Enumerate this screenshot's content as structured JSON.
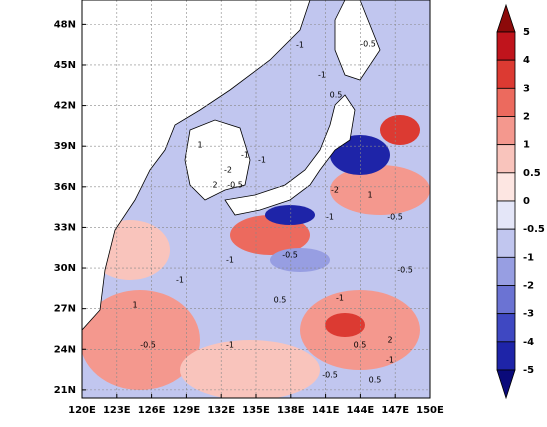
{
  "map": {
    "lonlim": [
      120,
      150
    ],
    "latlim": [
      20.4,
      49.8
    ],
    "lon_ticks": [
      {
        "value": 120,
        "label": "120E"
      },
      {
        "value": 123,
        "label": "123E"
      },
      {
        "value": 126,
        "label": "126E"
      },
      {
        "value": 129,
        "label": "129E"
      },
      {
        "value": 132,
        "label": "132E"
      },
      {
        "value": 135,
        "label": "135E"
      },
      {
        "value": 138,
        "label": "138E"
      },
      {
        "value": 141,
        "label": "141E"
      },
      {
        "value": 144,
        "label": "144E"
      },
      {
        "value": 147,
        "label": "147E"
      },
      {
        "value": 150,
        "label": "150E"
      }
    ],
    "lat_ticks": [
      {
        "value": 21,
        "label": "21N"
      },
      {
        "value": 24,
        "label": "24N"
      },
      {
        "value": 27,
        "label": "27N"
      },
      {
        "value": 30,
        "label": "30N"
      },
      {
        "value": 33,
        "label": "33N"
      },
      {
        "value": 36,
        "label": "36N"
      },
      {
        "value": 39,
        "label": "39N"
      },
      {
        "value": 42,
        "label": "42N"
      },
      {
        "value": 45,
        "label": "45N"
      },
      {
        "value": 48,
        "label": "48N"
      }
    ],
    "grid": true,
    "colorbar": {
      "levels": [
        5,
        4,
        3,
        2,
        1,
        0.5,
        0,
        -0.5,
        -1,
        -2,
        -3,
        -4,
        -5
      ],
      "colors": [
        "#8c0a0a",
        "#c0141c",
        "#dc3a32",
        "#ec6a5e",
        "#f4988e",
        "#f9c4bc",
        "#fde6e2",
        "#e4e6f8",
        "#c1c6ef",
        "#979ee2",
        "#6b73d3",
        "#3f48c2",
        "#1e24a8",
        "#0a0a7a"
      ]
    },
    "contour_labels": [
      "-1",
      "-0.5",
      "-1",
      "0.5",
      "1",
      "-1",
      "-2",
      "2",
      "-0.5",
      "-1",
      "-1",
      "-2",
      "1",
      "-0.5",
      "-1",
      "0.5",
      "-0.5",
      "-1",
      "1",
      "-0.5",
      "-1",
      "0.5",
      "2",
      "-0.5",
      "-1",
      "0.5",
      "-1",
      "-0.5"
    ]
  }
}
